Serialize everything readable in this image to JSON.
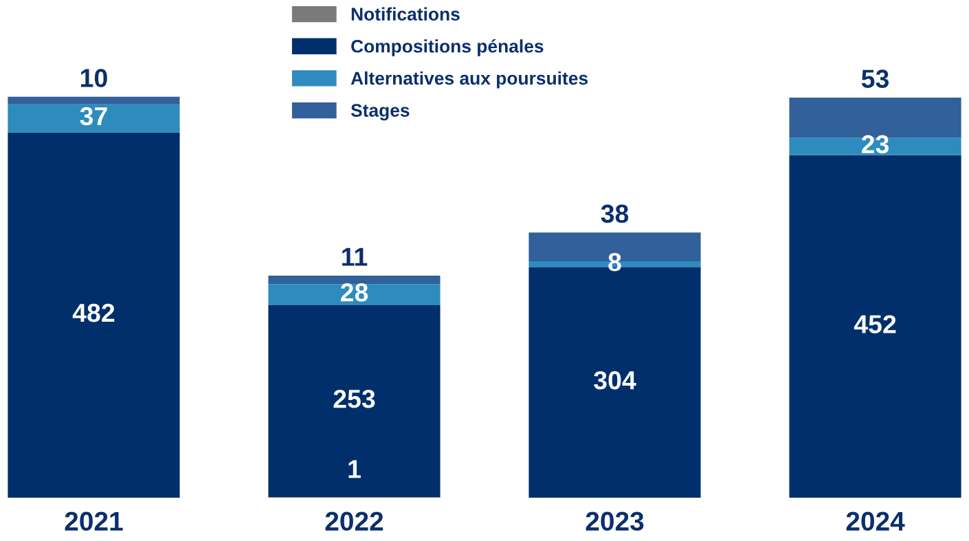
{
  "chart_data": {
    "type": "bar",
    "stacked": true,
    "categories": [
      "2021",
      "2022",
      "2023",
      "2024"
    ],
    "series": [
      {
        "name": "Notifications",
        "color": "#7a7a7a",
        "values": [
          null,
          1,
          null,
          null
        ]
      },
      {
        "name": "Compositions pénales",
        "color": "#002f6c",
        "values": [
          482,
          253,
          304,
          452
        ]
      },
      {
        "name": "Alternatives aux poursuites",
        "color": "#2e8bbd",
        "values": [
          37,
          28,
          8,
          23
        ]
      },
      {
        "name": "Stages",
        "color": "#31609a",
        "values": [
          10,
          11,
          38,
          53
        ]
      }
    ],
    "data_labels": true,
    "legend": "top",
    "grid": false
  }
}
